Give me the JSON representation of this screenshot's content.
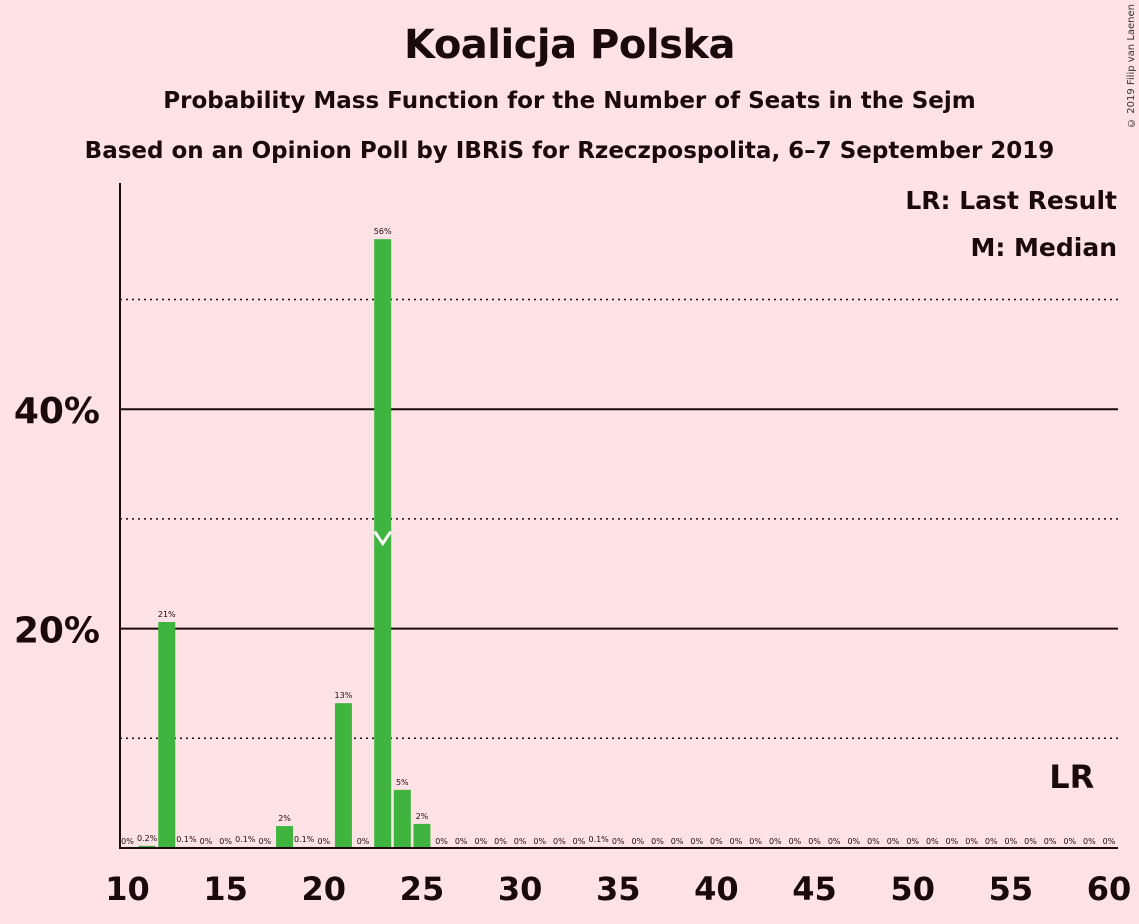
{
  "copyright": "© 2019 Filip van Laenen",
  "chart_data": {
    "type": "bar",
    "title": "Koalicja Polska",
    "subtitle": "Probability Mass Function for the Number of Seats in the Sejm",
    "subtitle2": "Based on an Opinion Poll by IBRiS for Rzeczpospolita, 6–7 September 2019",
    "xlabel": "",
    "ylabel": "",
    "xlim": [
      10,
      60
    ],
    "ylim": [
      0,
      60
    ],
    "x_ticks": [
      10,
      15,
      20,
      25,
      30,
      35,
      40,
      45,
      50,
      55,
      60
    ],
    "y_ticks_major": [
      20,
      40
    ],
    "y_tick_labels": [
      "20%",
      "40%"
    ],
    "y_gridlines_dotted": [
      10,
      30,
      50
    ],
    "legend": [
      "LR: Last Result",
      "M: Median"
    ],
    "legend_position": "top-right",
    "median": 23,
    "last_result": 58,
    "last_result_label": "LR",
    "bar_color": "#3fb53f",
    "points": [
      {
        "x": 10,
        "value": 0,
        "label": "0%"
      },
      {
        "x": 11,
        "value": 0.2,
        "label": "0.2%"
      },
      {
        "x": 12,
        "value": 20.6,
        "label": "21%"
      },
      {
        "x": 13,
        "value": 0.1,
        "label": "0.1%"
      },
      {
        "x": 14,
        "value": 0,
        "label": "0%"
      },
      {
        "x": 15,
        "value": 0,
        "label": "0%"
      },
      {
        "x": 16,
        "value": 0.1,
        "label": "0.1%"
      },
      {
        "x": 17,
        "value": 0,
        "label": "0%"
      },
      {
        "x": 18,
        "value": 2.0,
        "label": "2%"
      },
      {
        "x": 19,
        "value": 0.1,
        "label": "0.1%"
      },
      {
        "x": 20,
        "value": 0,
        "label": "0%"
      },
      {
        "x": 21,
        "value": 13.2,
        "label": "13%"
      },
      {
        "x": 22,
        "value": 0,
        "label": "0%"
      },
      {
        "x": 23,
        "value": 55.5,
        "label": "56%"
      },
      {
        "x": 24,
        "value": 5.3,
        "label": "5%"
      },
      {
        "x": 25,
        "value": 2.2,
        "label": "2%"
      },
      {
        "x": 26,
        "value": 0,
        "label": "0%"
      },
      {
        "x": 27,
        "value": 0,
        "label": "0%"
      },
      {
        "x": 28,
        "value": 0,
        "label": "0%"
      },
      {
        "x": 29,
        "value": 0,
        "label": "0%"
      },
      {
        "x": 30,
        "value": 0,
        "label": "0%"
      },
      {
        "x": 31,
        "value": 0,
        "label": "0%"
      },
      {
        "x": 32,
        "value": 0,
        "label": "0%"
      },
      {
        "x": 33,
        "value": 0,
        "label": "0%"
      },
      {
        "x": 34,
        "value": 0.1,
        "label": "0.1%"
      },
      {
        "x": 35,
        "value": 0,
        "label": "0%"
      },
      {
        "x": 36,
        "value": 0,
        "label": "0%"
      },
      {
        "x": 37,
        "value": 0,
        "label": "0%"
      },
      {
        "x": 38,
        "value": 0,
        "label": "0%"
      },
      {
        "x": 39,
        "value": 0,
        "label": "0%"
      },
      {
        "x": 40,
        "value": 0,
        "label": "0%"
      },
      {
        "x": 41,
        "value": 0,
        "label": "0%"
      },
      {
        "x": 42,
        "value": 0,
        "label": "0%"
      },
      {
        "x": 43,
        "value": 0,
        "label": "0%"
      },
      {
        "x": 44,
        "value": 0,
        "label": "0%"
      },
      {
        "x": 45,
        "value": 0,
        "label": "0%"
      },
      {
        "x": 46,
        "value": 0,
        "label": "0%"
      },
      {
        "x": 47,
        "value": 0,
        "label": "0%"
      },
      {
        "x": 48,
        "value": 0,
        "label": "0%"
      },
      {
        "x": 49,
        "value": 0,
        "label": "0%"
      },
      {
        "x": 50,
        "value": 0,
        "label": "0%"
      },
      {
        "x": 51,
        "value": 0,
        "label": "0%"
      },
      {
        "x": 52,
        "value": 0,
        "label": "0%"
      },
      {
        "x": 53,
        "value": 0,
        "label": "0%"
      },
      {
        "x": 54,
        "value": 0,
        "label": "0%"
      },
      {
        "x": 55,
        "value": 0,
        "label": "0%"
      },
      {
        "x": 56,
        "value": 0,
        "label": "0%"
      },
      {
        "x": 57,
        "value": 0,
        "label": "0%"
      },
      {
        "x": 58,
        "value": 0,
        "label": "0%"
      },
      {
        "x": 59,
        "value": 0,
        "label": "0%"
      },
      {
        "x": 60,
        "value": 0,
        "label": "0%"
      }
    ]
  }
}
